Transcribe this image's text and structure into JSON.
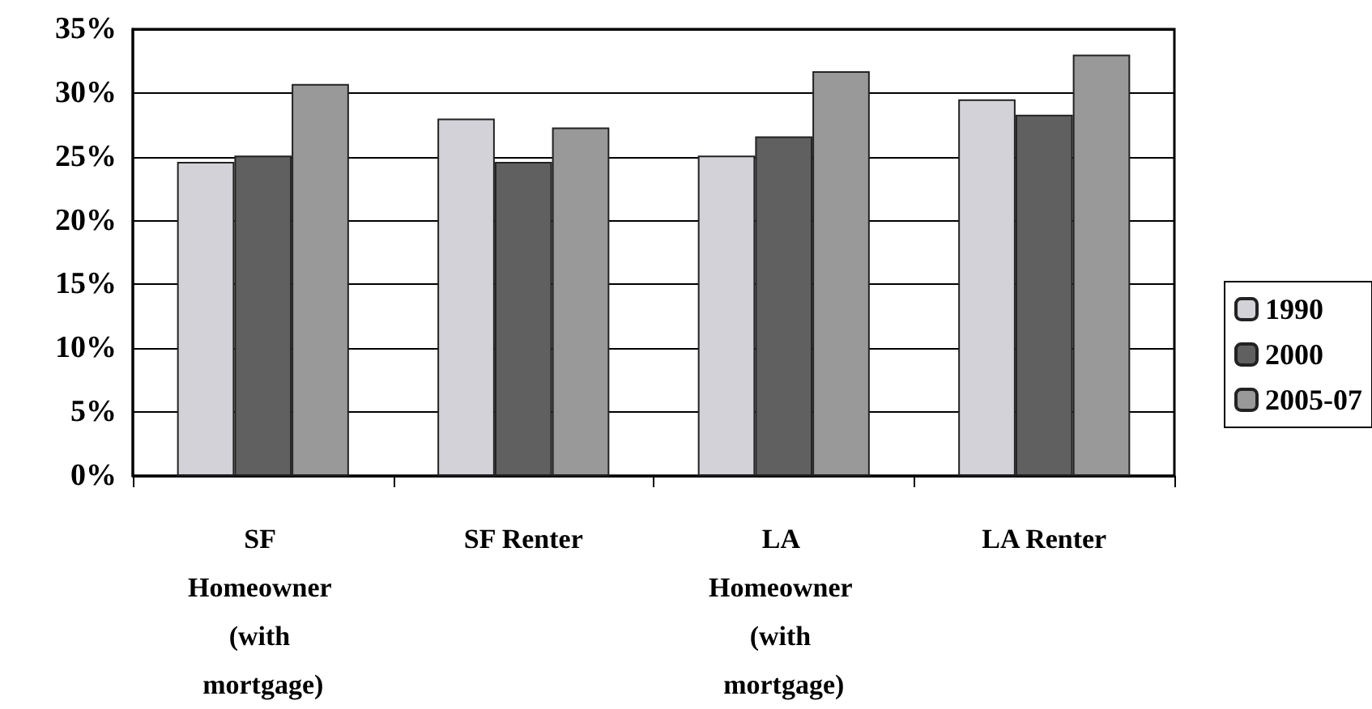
{
  "chart_data": {
    "type": "bar",
    "categories": [
      "SF Homeowner (with mortgage)",
      "SF Renter",
      "LA Homeowner (with mortgage)",
      "LA Renter"
    ],
    "series": [
      {
        "name": "1990",
        "color": "#d2d2d8",
        "values": [
          24.6,
          28.0,
          25.1,
          29.5
        ]
      },
      {
        "name": "2000",
        "color": "#606060",
        "values": [
          25.1,
          24.6,
          26.6,
          28.3
        ]
      },
      {
        "name": "2005-07",
        "color": "#999999",
        "values": [
          30.7,
          27.3,
          31.7,
          33.0
        ]
      }
    ],
    "ylim": [
      0,
      35
    ],
    "yticks": [
      {
        "value": 0,
        "label": "0%"
      },
      {
        "value": 5,
        "label": "5%"
      },
      {
        "value": 10,
        "label": "10%"
      },
      {
        "value": 15,
        "label": "15%"
      },
      {
        "value": 20,
        "label": "20%"
      },
      {
        "value": 25,
        "label": "25%"
      },
      {
        "value": 30,
        "label": "30%"
      },
      {
        "value": 35,
        "label": "35%"
      }
    ],
    "grid": "y",
    "legend": "right"
  }
}
